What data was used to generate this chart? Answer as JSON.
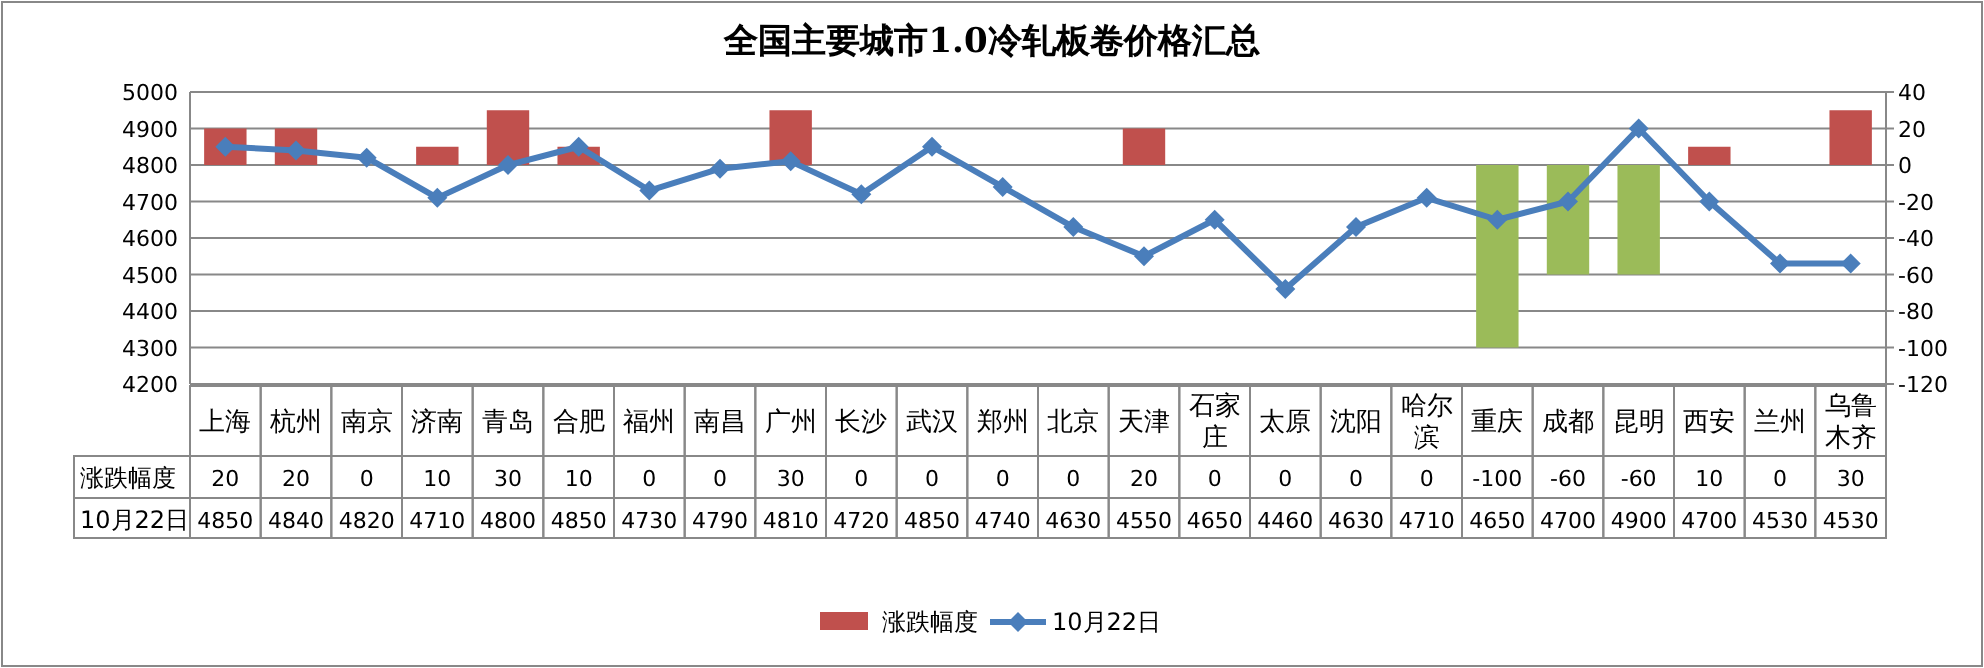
{
  "chart_data": {
    "type": "bar",
    "title": "全国主要城市1.0冷轧板卷价格汇总",
    "categories": [
      "上海",
      "杭州",
      "南京",
      "济南",
      "青岛",
      "合肥",
      "福州",
      "南昌",
      "广州",
      "长沙",
      "武汉",
      "郑州",
      "北京",
      "天津",
      "石家庄",
      "太原",
      "沈阳",
      "哈尔滨",
      "重庆",
      "成都",
      "昆明",
      "西安",
      "兰州",
      "乌鲁木齐"
    ],
    "series": [
      {
        "name": "涨跌幅度",
        "axis": "y2",
        "color": "#c0504d",
        "values": [
          20,
          20,
          0,
          10,
          30,
          10,
          0,
          0,
          30,
          0,
          0,
          0,
          0,
          20,
          0,
          0,
          0,
          0,
          -100,
          -60,
          -60,
          10,
          0,
          30
        ],
        "colors": [
          "#c0504d",
          "#c0504d",
          "#c0504d",
          "#c0504d",
          "#c0504d",
          "#c0504d",
          "#c0504d",
          "#c0504d",
          "#c0504d",
          "#c0504d",
          "#c0504d",
          "#c0504d",
          "#c0504d",
          "#c0504d",
          "#c0504d",
          "#c0504d",
          "#c0504d",
          "#c0504d",
          "#9bbb59",
          "#9bbb59",
          "#9bbb59",
          "#c0504d",
          "#c0504d",
          "#c0504d"
        ]
      },
      {
        "name": "10月22日",
        "type": "line",
        "color": "#4a7ebb",
        "marker": "diamond",
        "values": [
          4850,
          4840,
          4820,
          4710,
          4800,
          4850,
          4730,
          4790,
          4810,
          4720,
          4850,
          4740,
          4630,
          4550,
          4650,
          4460,
          4630,
          4710,
          4650,
          4700,
          4900,
          4700,
          4530,
          4530
        ]
      }
    ],
    "ylim": [
      4200,
      5000
    ],
    "yticks": [
      4200,
      4300,
      4400,
      4500,
      4600,
      4700,
      4800,
      4900,
      5000
    ],
    "y2lim": [
      -120,
      40
    ],
    "y2ticks": [
      -120,
      -100,
      -80,
      -60,
      -40,
      -20,
      0,
      20,
      40
    ],
    "grid": "y",
    "legend": "bottom",
    "data_labels": true
  }
}
